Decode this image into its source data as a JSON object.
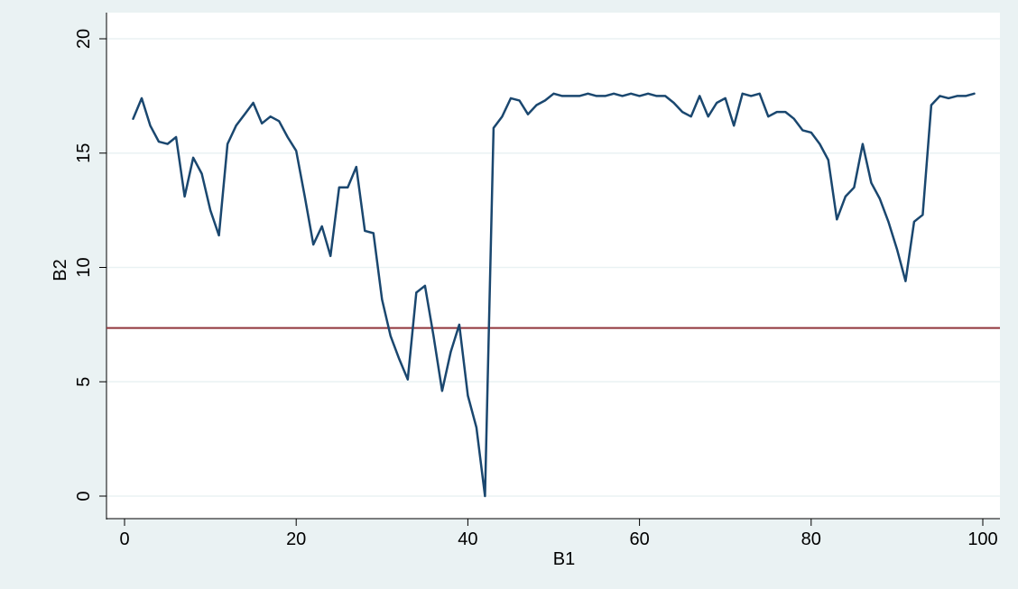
{
  "chart_data": {
    "type": "line",
    "title": "",
    "xlabel": "B1",
    "ylabel": "B2",
    "xlim": [
      -1,
      101
    ],
    "ylim": [
      0,
      20
    ],
    "x_ticks": [
      0,
      20,
      40,
      60,
      80,
      100
    ],
    "y_ticks": [
      0,
      5,
      10,
      15,
      20
    ],
    "grid": true,
    "legend": "none",
    "colors": {
      "outer_background": "#eaf2f3",
      "plot_background": "#ffffff",
      "grid": "#eaf2f3",
      "series_line": "#1a476f",
      "reference_line": "#90353b"
    },
    "reference_line": {
      "y": 7.35
    },
    "series": [
      {
        "x": [
          1,
          2,
          3,
          4,
          5,
          6,
          7,
          8,
          9,
          10,
          11,
          12,
          13,
          14,
          15,
          16,
          17,
          18,
          19,
          20,
          21,
          22,
          23,
          24,
          25,
          26,
          27,
          28,
          29,
          30,
          31,
          32,
          33,
          34,
          35,
          36,
          37,
          38,
          39,
          40,
          41,
          42,
          43,
          44,
          45,
          46,
          47,
          48,
          49,
          50,
          51,
          52,
          53,
          54,
          55,
          56,
          57,
          58,
          59,
          60,
          61,
          62,
          63,
          64,
          65,
          66,
          67,
          68,
          69,
          70,
          71,
          72,
          73,
          74,
          75,
          76,
          77,
          78,
          79,
          80,
          81,
          82,
          83,
          84,
          85,
          86,
          87,
          88,
          89,
          90,
          91,
          92,
          93,
          94,
          95,
          96,
          97,
          98,
          99
        ],
        "values": [
          16.5,
          17.4,
          16.2,
          15.5,
          15.4,
          15.7,
          13.1,
          14.8,
          14.1,
          12.5,
          11.4,
          15.4,
          16.2,
          16.7,
          17.2,
          16.3,
          16.6,
          16.4,
          15.7,
          15.1,
          13.1,
          11.0,
          11.8,
          10.5,
          13.5,
          13.5,
          14.4,
          11.6,
          11.5,
          8.6,
          7.0,
          6.0,
          5.1,
          8.9,
          9.2,
          7.0,
          4.6,
          6.3,
          7.5,
          4.4,
          3.0,
          0.0,
          16.1,
          16.6,
          17.4,
          17.3,
          16.7,
          17.1,
          17.3,
          17.6,
          17.5,
          17.5,
          17.5,
          17.6,
          17.5,
          17.5,
          17.6,
          17.5,
          17.6,
          17.5,
          17.6,
          17.5,
          17.5,
          17.2,
          16.8,
          16.6,
          17.5,
          16.6,
          17.2,
          17.4,
          16.2,
          17.6,
          17.5,
          17.6,
          16.6,
          16.8,
          16.8,
          16.5,
          16.0,
          15.9,
          15.4,
          14.7,
          12.1,
          13.1,
          13.5,
          15.4,
          13.7,
          13.0,
          12.0,
          10.8,
          9.4,
          12.0,
          12.3,
          17.1,
          17.5,
          17.4,
          17.5,
          17.5,
          17.6
        ]
      }
    ]
  }
}
